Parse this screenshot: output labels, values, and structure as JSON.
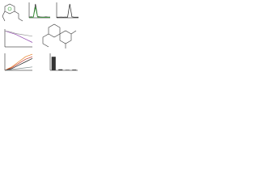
{
  "chart_data": [
    {
      "type": "line",
      "x": [
        0,
        1,
        2,
        3,
        4,
        5,
        6,
        7,
        8,
        9,
        10
      ],
      "xlim": [
        0,
        10
      ],
      "ylim": [
        0,
        10
      ],
      "series": [
        {
          "color": "#222222",
          "values": [
            0.5,
            0.6,
            0.5,
            9,
            0.8,
            0.6,
            0.5,
            0.5,
            0.6,
            0.5,
            0.5
          ]
        },
        {
          "color": "#2ca02c",
          "values": [
            0.3,
            0.3,
            0.4,
            7,
            0.5,
            0.3,
            0.3,
            0.3,
            0.3,
            0.3,
            0.3
          ]
        }
      ]
    },
    {
      "type": "line",
      "x": [
        0,
        1,
        2,
        3,
        4,
        5,
        6,
        7,
        8,
        9,
        10
      ],
      "xlim": [
        0,
        10
      ],
      "ylim": [
        0,
        10
      ],
      "series": [
        {
          "color": "#222222",
          "values": [
            0.4,
            0.4,
            0.5,
            0.4,
            0.5,
            0.4,
            9,
            0.6,
            0.4,
            0.4,
            0.4
          ]
        }
      ]
    },
    {
      "type": "line",
      "x": [
        0,
        1,
        2,
        3,
        4,
        5
      ],
      "xlim": [
        0,
        5
      ],
      "ylim": [
        0,
        10
      ],
      "series": [
        {
          "color": "#8e44ad",
          "values": [
            9,
            8,
            7,
            5.5,
            4,
            2.5
          ]
        },
        {
          "color": "#999999",
          "values": [
            9,
            8.5,
            7.5,
            7,
            6.5,
            6
          ]
        }
      ]
    },
    {
      "type": "line",
      "x": [
        0,
        1,
        2,
        3,
        4
      ],
      "xlim": [
        0,
        4
      ],
      "ylim": [
        0,
        10
      ],
      "series": [
        {
          "color": "#e67e22",
          "values": [
            0,
            2,
            5,
            8,
            9.5
          ]
        },
        {
          "color": "#c0392b",
          "values": [
            0,
            1.5,
            4,
            6.5,
            8
          ]
        },
        {
          "color": "#222222",
          "values": [
            0,
            1,
            3,
            5,
            7
          ]
        },
        {
          "color": "#7f8c8d",
          "values": [
            0,
            0.5,
            1,
            1.5,
            2
          ]
        }
      ]
    },
    {
      "type": "bar",
      "categories": [
        null,
        null,
        null,
        null
      ],
      "values": [
        8,
        0.6,
        0.3,
        0.4
      ],
      "ylim": [
        0,
        10
      ],
      "color": "#333333"
    }
  ]
}
